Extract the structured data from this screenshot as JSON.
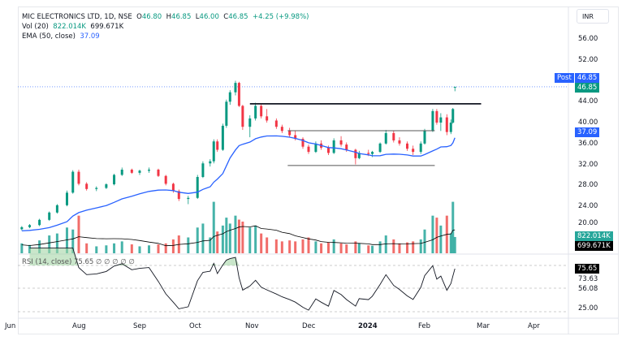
{
  "legend": {
    "symbol": "MIC ELECTRONICS LTD, 1D, NSE",
    "open_label": "O",
    "open": "46.80",
    "high_label": "H",
    "high": "46.85",
    "low_label": "L",
    "low": "46.00",
    "close_label": "C",
    "close": "46.85",
    "change": "+4.25 (+9.98%)",
    "vol_label": "Vol (20)",
    "vol": "822.014K",
    "vol_ma": "699.671K",
    "ema_label": "EMA (50, close)",
    "ema": "37.09",
    "rsi_label": "RSI (14, close)",
    "rsi": "75.65",
    "rsi_extra": "∅ ∅   ∅ ∅ ∅"
  },
  "currency": "INR",
  "price_axis": [
    "56.00",
    "52.00",
    "44.00",
    "40.00",
    "36.00",
    "32.00",
    "28.00",
    "24.00",
    "20.00"
  ],
  "tags": {
    "post_label": "Post",
    "post_price": "46.85",
    "last_price": "46.85",
    "ema": "37.09",
    "vol": "822.014K",
    "vol_ma": "699.671K"
  },
  "rsi_axis": {
    "current": "75.65",
    "upper": "73.63",
    "middle": "56.08",
    "lower": "25.00"
  },
  "time_axis": [
    "Jun",
    "Aug",
    "Sep",
    "Oct",
    "Nov",
    "Dec",
    "2024",
    "Feb",
    "Mar",
    "Apr"
  ],
  "colors": {
    "up": "#089981",
    "down": "#f23645",
    "ema": "#2962ff",
    "vol_up": "#26a69a",
    "vol_down": "#ef5350",
    "rsi": "#131722",
    "rsi_fill": "#a5d6a7"
  },
  "chart_data": {
    "type": "candlestick",
    "ylim": [
      18,
      58
    ],
    "trendlines": [
      {
        "from": "2023-10-31",
        "to": "2024-02-29",
        "price": 43.6,
        "style": "thick"
      },
      {
        "from": "2023-11-20",
        "to": "2024-02-06",
        "price": 38.45,
        "style": "thin"
      },
      {
        "from": "2023-11-20",
        "to": "2024-02-06",
        "price": 31.8,
        "style": "thin"
      }
    ],
    "candles": [
      [
        "2023-07-03",
        19.6,
        20.2,
        19.4,
        20.0,
        500
      ],
      [
        "2023-07-07",
        20.0,
        20.6,
        19.8,
        20.4,
        420
      ],
      [
        "2023-07-12",
        20.4,
        21.6,
        20.2,
        21.4,
        650
      ],
      [
        "2023-07-17",
        21.4,
        23.0,
        21.2,
        22.8,
        900
      ],
      [
        "2023-07-21",
        22.8,
        24.4,
        22.6,
        24.2,
        1000
      ],
      [
        "2023-07-26",
        24.2,
        27.0,
        24.0,
        26.6,
        1300
      ],
      [
        "2023-07-29",
        26.6,
        30.9,
        26.4,
        30.6,
        1200
      ],
      [
        "2023-08-01",
        30.6,
        31.0,
        28.0,
        28.3,
        1900
      ],
      [
        "2023-08-05",
        28.3,
        28.6,
        27.0,
        27.3,
        500
      ],
      [
        "2023-08-10",
        27.3,
        27.8,
        26.9,
        27.5,
        350
      ],
      [
        "2023-08-15",
        27.5,
        28.4,
        27.3,
        28.2,
        400
      ],
      [
        "2023-08-19",
        28.2,
        30.2,
        28.0,
        30.0,
        500
      ],
      [
        "2023-08-23",
        30.0,
        31.4,
        29.8,
        31.0,
        600
      ],
      [
        "2023-08-28",
        31.0,
        31.2,
        30.2,
        30.4,
        450
      ],
      [
        "2023-09-01",
        30.4,
        31.0,
        30.0,
        30.8,
        350
      ],
      [
        "2023-09-06",
        30.8,
        31.4,
        30.4,
        31.0,
        400
      ],
      [
        "2023-09-11",
        31.0,
        31.2,
        29.6,
        29.8,
        450
      ],
      [
        "2023-09-15",
        29.8,
        30.0,
        28.0,
        28.3,
        500
      ],
      [
        "2023-09-19",
        28.3,
        28.5,
        26.6,
        26.9,
        700
      ],
      [
        "2023-09-22",
        26.9,
        27.2,
        25.0,
        25.4,
        900
      ],
      [
        "2023-09-27",
        25.4,
        26.0,
        24.4,
        25.6,
        800
      ],
      [
        "2023-10-02",
        25.6,
        30.0,
        25.4,
        29.6,
        1300
      ],
      [
        "2023-10-05",
        29.6,
        32.6,
        29.4,
        32.2,
        1500
      ],
      [
        "2023-10-09",
        32.2,
        33.0,
        31.6,
        32.6,
        800
      ],
      [
        "2023-10-11",
        32.6,
        36.8,
        32.2,
        36.4,
        2600
      ],
      [
        "2023-10-13",
        36.4,
        36.8,
        34.4,
        34.8,
        1100
      ],
      [
        "2023-10-16",
        34.8,
        39.8,
        34.6,
        39.4,
        1400
      ],
      [
        "2023-10-18",
        39.4,
        44.4,
        39.0,
        44.0,
        1800
      ],
      [
        "2023-10-20",
        44.0,
        46.2,
        43.4,
        45.8,
        1500
      ],
      [
        "2023-10-23",
        45.8,
        48.0,
        45.2,
        47.6,
        1900
      ],
      [
        "2023-10-25",
        47.6,
        47.8,
        43.0,
        43.2,
        1700
      ],
      [
        "2023-10-27",
        43.2,
        43.4,
        38.6,
        39.2,
        1600
      ],
      [
        "2023-10-31",
        39.2,
        41.4,
        37.2,
        40.8,
        1300
      ],
      [
        "2023-11-03",
        40.8,
        43.8,
        40.4,
        43.2,
        1400
      ],
      [
        "2023-11-06",
        43.2,
        43.6,
        40.8,
        41.2,
        1000
      ],
      [
        "2023-11-09",
        41.2,
        42.6,
        40.0,
        40.4,
        800
      ],
      [
        "2023-11-14",
        40.4,
        40.8,
        38.8,
        39.2,
        700
      ],
      [
        "2023-11-17",
        39.2,
        39.6,
        38.0,
        38.4,
        600
      ],
      [
        "2023-11-21",
        38.4,
        39.0,
        37.2,
        37.6,
        650
      ],
      [
        "2023-11-24",
        37.6,
        38.4,
        36.6,
        36.9,
        600
      ],
      [
        "2023-11-28",
        36.9,
        37.2,
        35.0,
        35.4,
        700
      ],
      [
        "2023-12-01",
        35.4,
        35.8,
        34.0,
        34.4,
        800
      ],
      [
        "2023-12-05",
        34.4,
        36.4,
        34.2,
        36.0,
        600
      ],
      [
        "2023-12-08",
        36.0,
        36.6,
        34.8,
        35.2,
        500
      ],
      [
        "2023-12-12",
        35.2,
        35.6,
        33.8,
        34.2,
        550
      ],
      [
        "2023-12-15",
        34.2,
        37.0,
        34.0,
        36.6,
        700
      ],
      [
        "2023-12-19",
        36.6,
        37.4,
        35.4,
        35.8,
        500
      ],
      [
        "2023-12-22",
        35.8,
        36.2,
        34.4,
        34.8,
        450
      ],
      [
        "2023-12-27",
        34.8,
        35.0,
        32.0,
        33.2,
        600
      ],
      [
        "2023-12-29",
        33.2,
        34.6,
        33.0,
        34.2,
        500
      ],
      [
        "2024-01-03",
        34.2,
        34.8,
        33.6,
        34.0,
        400
      ],
      [
        "2024-01-05",
        34.0,
        34.6,
        33.4,
        34.4,
        380
      ],
      [
        "2024-01-09",
        34.4,
        36.2,
        34.2,
        36.0,
        600
      ],
      [
        "2024-01-12",
        36.0,
        38.6,
        35.8,
        38.0,
        900
      ],
      [
        "2024-01-16",
        38.0,
        38.4,
        36.2,
        36.6,
        700
      ],
      [
        "2024-01-19",
        36.6,
        37.2,
        35.6,
        36.0,
        500
      ],
      [
        "2024-01-23",
        36.0,
        36.4,
        34.6,
        35.0,
        550
      ],
      [
        "2024-01-26",
        35.0,
        35.6,
        33.8,
        34.4,
        600
      ],
      [
        "2024-01-30",
        34.4,
        36.4,
        34.0,
        36.0,
        700
      ],
      [
        "2024-02-01",
        36.0,
        38.8,
        35.8,
        38.4,
        1200
      ],
      [
        "2024-02-05",
        38.4,
        42.6,
        38.2,
        42.2,
        1900
      ],
      [
        "2024-02-07",
        42.2,
        42.6,
        39.6,
        40.0,
        1800
      ],
      [
        "2024-02-09",
        40.0,
        41.8,
        38.4,
        41.0,
        1400
      ],
      [
        "2024-02-12",
        41.0,
        41.6,
        37.6,
        38.2,
        1900
      ],
      [
        "2024-02-14",
        38.2,
        40.6,
        37.8,
        40.0,
        1000
      ],
      [
        "2024-02-15",
        40.0,
        42.8,
        39.8,
        42.6,
        2600
      ],
      [
        "2024-02-16",
        46.8,
        46.85,
        46.0,
        46.85,
        822.014
      ]
    ]
  }
}
